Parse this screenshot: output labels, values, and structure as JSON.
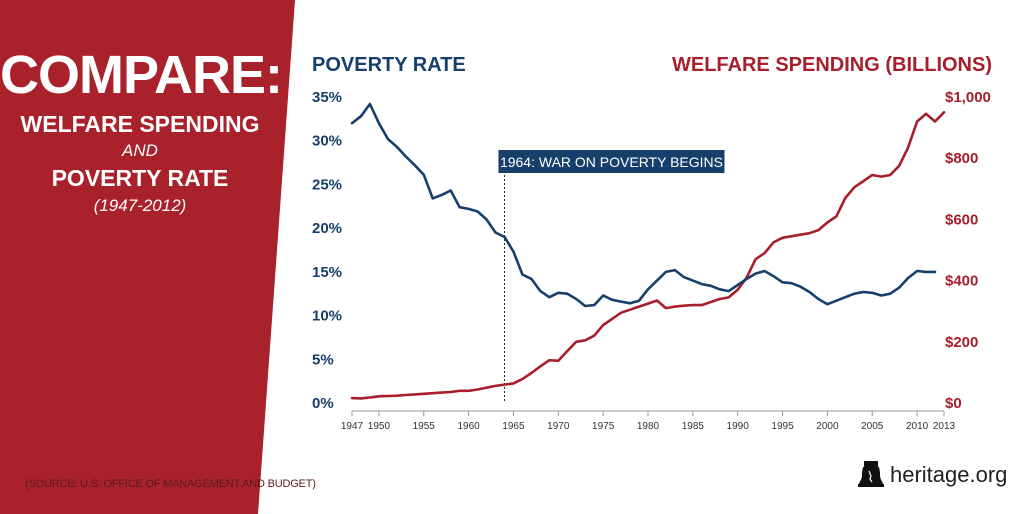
{
  "panel": {
    "title": "COMPARE:",
    "line1": "WELFARE SPENDING",
    "and": "AND",
    "line2": "POVERTY RATE",
    "years": "(1947-2012)",
    "source": "(SOURCE: U.S. OFFICE OF MANAGEMENT AND BUDGET)"
  },
  "brand": {
    "text": "heritage.org",
    "icon": "liberty-bell-icon"
  },
  "colors": {
    "red": "#a61f2a",
    "blue": "#173f6b",
    "panel": "#a8212b"
  },
  "chart_data": {
    "type": "line",
    "title_left": "POVERTY RATE",
    "title_right": "WELFARE SPENDING (BILLIONS)",
    "x_ticks": [
      "1947",
      "1950",
      "1955",
      "1960",
      "1965",
      "1970",
      "1975",
      "1980",
      "1985",
      "1990",
      "1995",
      "2000",
      "2005",
      "2010",
      "2013"
    ],
    "xlim": [
      1947,
      2013
    ],
    "y_left": {
      "ticks": [
        "0%",
        "5%",
        "10%",
        "15%",
        "20%",
        "25%",
        "30%",
        "35%"
      ],
      "range": [
        0,
        35
      ]
    },
    "y_right": {
      "ticks": [
        "$0",
        "$200",
        "$400",
        "$600",
        "$800",
        "$1,000"
      ],
      "range": [
        0,
        1000
      ]
    },
    "annotation": {
      "text": "1964: WAR ON POVERTY BEGINS",
      "x": 1964
    },
    "series": [
      {
        "name": "Poverty Rate",
        "axis": "left",
        "color": "#173f6b",
        "x": [
          1947,
          1948,
          1949,
          1950,
          1951,
          1952,
          1953,
          1954,
          1955,
          1956,
          1957,
          1958,
          1959,
          1960,
          1961,
          1962,
          1963,
          1964,
          1965,
          1966,
          1967,
          1968,
          1969,
          1970,
          1971,
          1972,
          1973,
          1974,
          1975,
          1976,
          1977,
          1978,
          1979,
          1980,
          1981,
          1982,
          1983,
          1984,
          1985,
          1986,
          1987,
          1988,
          1989,
          1990,
          1991,
          1992,
          1993,
          1994,
          1995,
          1996,
          1997,
          1998,
          1999,
          2000,
          2001,
          2002,
          2003,
          2004,
          2005,
          2006,
          2007,
          2008,
          2009,
          2010,
          2011,
          2012
        ],
        "values": [
          32.0,
          32.8,
          34.2,
          32.0,
          30.2,
          29.3,
          28.2,
          27.2,
          26.1,
          23.4,
          23.8,
          24.3,
          22.4,
          22.2,
          21.9,
          21.0,
          19.5,
          19.0,
          17.3,
          14.7,
          14.2,
          12.8,
          12.1,
          12.6,
          12.5,
          11.9,
          11.1,
          11.2,
          12.3,
          11.8,
          11.6,
          11.4,
          11.7,
          13.0,
          14.0,
          15.0,
          15.2,
          14.4,
          14.0,
          13.6,
          13.4,
          13.0,
          12.8,
          13.5,
          14.2,
          14.8,
          15.1,
          14.5,
          13.8,
          13.7,
          13.3,
          12.7,
          11.9,
          11.3,
          11.7,
          12.1,
          12.5,
          12.7,
          12.6,
          12.3,
          12.5,
          13.2,
          14.3,
          15.1,
          15.0,
          15.0
        ]
      },
      {
        "name": "Welfare Spending",
        "axis": "right",
        "color": "#a61f2a",
        "x": [
          1947,
          1948,
          1949,
          1950,
          1951,
          1952,
          1953,
          1954,
          1955,
          1956,
          1957,
          1958,
          1959,
          1960,
          1961,
          1962,
          1963,
          1964,
          1965,
          1966,
          1967,
          1968,
          1969,
          1970,
          1971,
          1972,
          1973,
          1974,
          1975,
          1976,
          1977,
          1978,
          1979,
          1980,
          1981,
          1982,
          1983,
          1984,
          1985,
          1986,
          1987,
          1988,
          1989,
          1990,
          1991,
          1992,
          1993,
          1994,
          1995,
          1996,
          1997,
          1998,
          1999,
          2000,
          2001,
          2002,
          2003,
          2004,
          2005,
          2006,
          2007,
          2008,
          2009,
          2010,
          2011,
          2012,
          2013
        ],
        "values": [
          16,
          15,
          18,
          22,
          23,
          24,
          26,
          28,
          30,
          32,
          34,
          36,
          40,
          40,
          44,
          50,
          56,
          60,
          64,
          78,
          98,
          120,
          140,
          138,
          170,
          200,
          205,
          220,
          255,
          275,
          295,
          305,
          315,
          325,
          335,
          310,
          315,
          318,
          320,
          320,
          330,
          340,
          345,
          370,
          410,
          470,
          490,
          525,
          540,
          545,
          550,
          555,
          565,
          590,
          610,
          670,
          705,
          725,
          745,
          740,
          745,
          775,
          835,
          920,
          945,
          920,
          950
        ]
      }
    ]
  }
}
